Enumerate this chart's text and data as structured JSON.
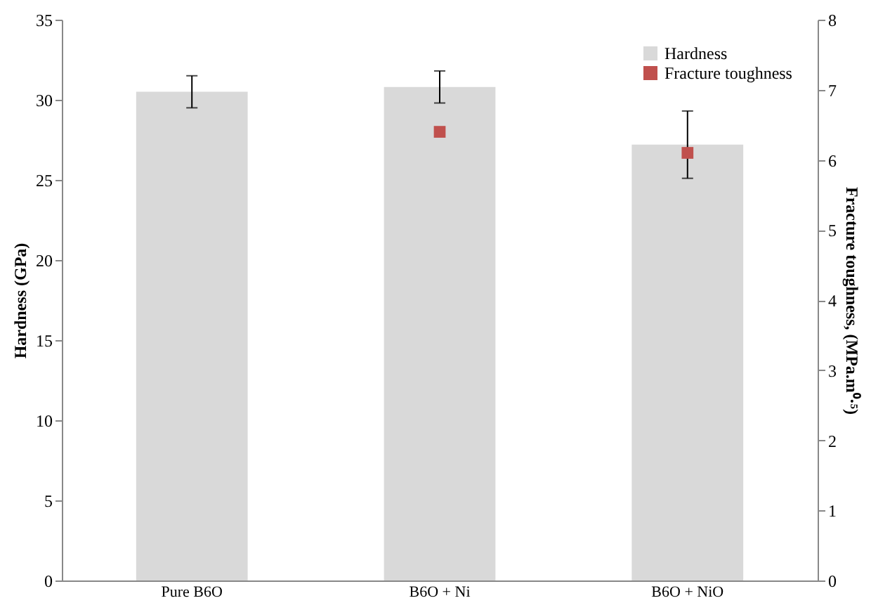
{
  "chart_data": {
    "type": "bar",
    "categories": [
      "Pure B6O",
      "B6O + Ni",
      "B6O + NiO"
    ],
    "series": [
      {
        "name": "Hardness",
        "color": "#d9d9d9",
        "values": [
          30.5,
          30.8,
          27.2
        ],
        "errors": [
          1.0,
          1.0,
          2.1
        ]
      },
      {
        "name": "Fracture toughness",
        "type": "scatter",
        "axis": "y2",
        "marker": "square",
        "color": "#c0504d",
        "values": [
          null,
          6.4,
          6.1
        ]
      }
    ],
    "ylabel": "Hardness (GPa)",
    "y2label": "Fracture toughness, (MPa.m⁰·⁵)",
    "ylim": [
      0,
      35
    ],
    "yticks": [
      0,
      5,
      10,
      15,
      20,
      25,
      30,
      35
    ],
    "y2lim": [
      0,
      8
    ],
    "y2ticks": [
      0,
      1,
      2,
      3,
      4,
      5,
      6,
      7,
      8
    ],
    "grid": false,
    "legend": "top right"
  }
}
